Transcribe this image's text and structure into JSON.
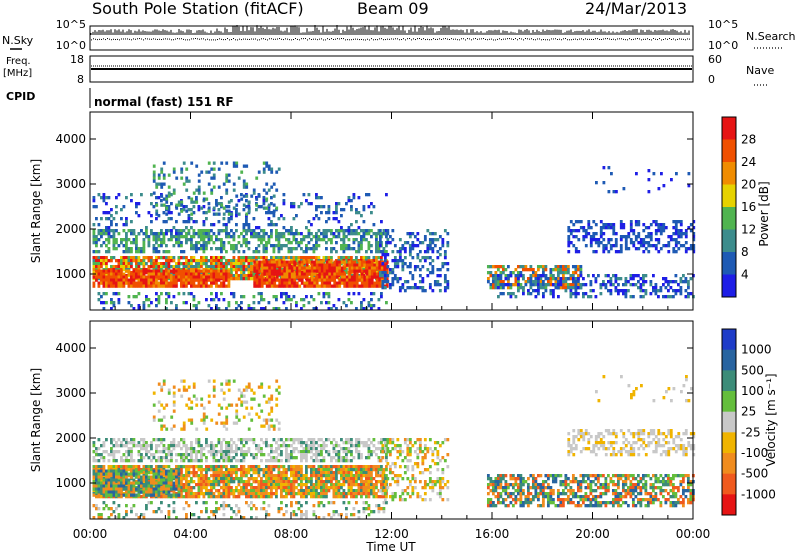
{
  "header": {
    "station": "South Pole Station (fitACF)",
    "beam": "Beam 09",
    "date": "24/Mar/2013"
  },
  "top_panels": {
    "nsky_label": "N.Sky",
    "nsky_ticks": [
      "10^5",
      "10^0"
    ],
    "nsearch_label": "N.Search",
    "nsearch_ticks": [
      "10^5",
      "10^0"
    ],
    "freq_label": "Freq.",
    "freq_unit": "[MHz]",
    "freq_ticks": [
      "18",
      "8"
    ],
    "nave_label": "Nave",
    "nave_ticks": [
      "60",
      "0"
    ],
    "cpid_label": "CPID",
    "cpid_text": "normal (fast) 151 RF"
  },
  "chart_data": [
    {
      "type": "heatmap",
      "name": "power",
      "ylabel": "Slant Range [km]",
      "yticks": [
        "1000",
        "2000",
        "3000",
        "4000"
      ],
      "ylim": [
        200,
        4600
      ],
      "colorbar_label": "Power [dB]",
      "colorbar_ticks": [
        "4",
        "8",
        "12",
        "16",
        "20",
        "24",
        "28"
      ],
      "colorbar_colors": [
        "#1e1ee6",
        "#1e5ab4",
        "#3c8c8c",
        "#50b450",
        "#e6d200",
        "#f08c00",
        "#f05000",
        "#e61414"
      ],
      "xlim_hours": [
        0,
        24
      ]
    },
    {
      "type": "heatmap",
      "name": "velocity",
      "ylabel": "Slant Range [km]",
      "yticks": [
        "1000",
        "2000",
        "3000",
        "4000"
      ],
      "ylim": [
        200,
        4600
      ],
      "colorbar_label": "Velocity [m s⁻¹]",
      "colorbar_ticks": [
        "1000",
        "500",
        "100",
        "25",
        "-25",
        "-100",
        "-500",
        "-1000"
      ],
      "colorbar_colors": [
        "#1e3cc8",
        "#2864a0",
        "#3c8c78",
        "#64be3c",
        "#c8c8c8",
        "#f0b400",
        "#f08c1e",
        "#f05a1e",
        "#e61414"
      ],
      "xticks": [
        "00:00",
        "04:00",
        "08:00",
        "12:00",
        "16:00",
        "20:00",
        "00:00"
      ],
      "xlabel": "Time UT",
      "xlim_hours": [
        0,
        24
      ]
    }
  ]
}
